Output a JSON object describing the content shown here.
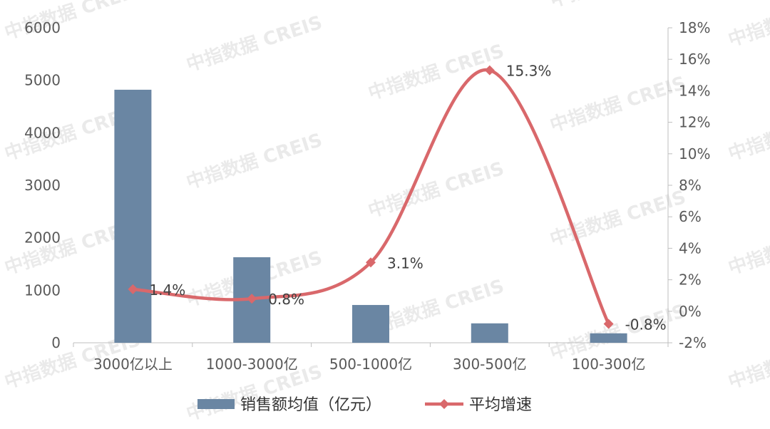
{
  "watermark": {
    "text": "中指数据 CREIS"
  },
  "chart_data": {
    "type": "bar",
    "categories": [
      "3000亿以上",
      "1000-3000亿",
      "500-1000亿",
      "300-500亿",
      "100-300亿"
    ],
    "series": [
      {
        "name": "销售额均值（亿元）",
        "kind": "bar",
        "axis": "left",
        "color": "#6a86a3",
        "values": [
          4820,
          1630,
          720,
          370,
          180
        ]
      },
      {
        "name": "平均增速",
        "kind": "line",
        "axis": "right",
        "color": "#d9686b",
        "marker": "diamond",
        "smooth": true,
        "values": [
          1.4,
          0.8,
          3.1,
          15.3,
          -0.8
        ],
        "labels": [
          "1.4%",
          "0.8%",
          "3.1%",
          "15.3%",
          "-0.8%"
        ]
      }
    ],
    "y_left": {
      "ylim": [
        0,
        6000
      ],
      "ticks": [
        0,
        1000,
        2000,
        3000,
        4000,
        5000,
        6000
      ],
      "tick_labels": [
        "0",
        "1000",
        "2000",
        "3000",
        "4000",
        "5000",
        "6000"
      ]
    },
    "y_right": {
      "ylim": [
        -2,
        18
      ],
      "ticks": [
        -2,
        0,
        2,
        4,
        6,
        8,
        10,
        12,
        14,
        16,
        18
      ],
      "tick_labels": [
        "-2%",
        "0%",
        "2%",
        "4%",
        "6%",
        "8%",
        "10%",
        "12%",
        "14%",
        "16%",
        "18%"
      ]
    },
    "title": "",
    "xlabel": "",
    "ylabel": "",
    "grid": false,
    "legend_position": "bottom"
  }
}
